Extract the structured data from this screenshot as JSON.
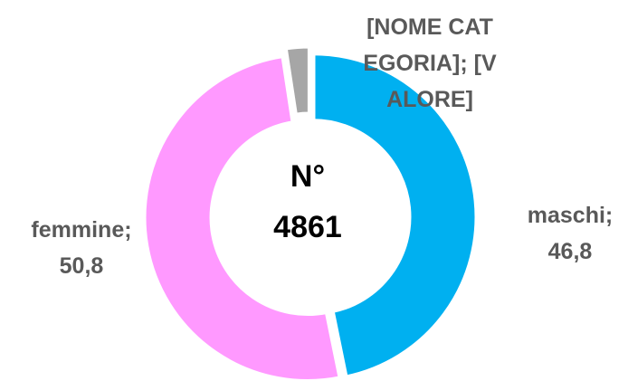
{
  "chart_data": {
    "type": "pie",
    "categories": [
      "maschi",
      "femmine",
      "[NOME CATEGORIA]"
    ],
    "values": [
      46.8,
      50.8,
      2.4
    ],
    "value_labels": [
      "46,8",
      "50,8",
      "[VALORE]"
    ],
    "label_separator": ";",
    "colors": [
      "#00b0f0",
      "#ff99ff",
      "#a6a6a6"
    ],
    "center_text": [
      "N°",
      "4861"
    ],
    "donut": true
  }
}
